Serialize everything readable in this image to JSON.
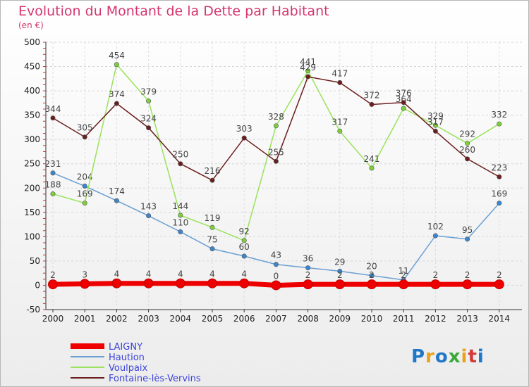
{
  "chart_data": {
    "type": "line",
    "title": "Evolution du Montant de la Dette par Habitant",
    "subtitle": "(en €)",
    "categories": [
      "2000",
      "2001",
      "2002",
      "2003",
      "2004",
      "2005",
      "2006",
      "2007",
      "2008",
      "2009",
      "2010",
      "2011",
      "2012",
      "2013",
      "2014"
    ],
    "ylim": [
      -50,
      500
    ],
    "yticks": [
      -50,
      0,
      50,
      100,
      150,
      200,
      250,
      300,
      350,
      400,
      450,
      500
    ],
    "grid": true,
    "legend_position": "bottom-left",
    "series": [
      {
        "name": "LAIGNY",
        "color": "#ee0000",
        "thick": true,
        "values": [
          2,
          3,
          4,
          4,
          4,
          4,
          4,
          0,
          2,
          2,
          2,
          2,
          2,
          2,
          2
        ],
        "labels": [
          "2",
          "3",
          "4",
          "4",
          "4",
          "4",
          "4",
          "0",
          "2",
          "2",
          "2",
          "2",
          "2",
          "2",
          "2"
        ]
      },
      {
        "name": "Haution",
        "color": "#6a9fd3",
        "marker": "#3a87cf",
        "values": [
          231,
          204,
          174,
          143,
          110,
          75,
          60,
          43,
          36,
          29,
          20,
          11,
          102,
          95,
          169
        ],
        "labels": [
          "231",
          "204",
          "174",
          "143",
          "110",
          "75",
          "60",
          "43",
          "36",
          "29",
          "20",
          "11",
          "102",
          "95",
          "169"
        ]
      },
      {
        "name": "Voulpaix",
        "color": "#99e35a",
        "marker": "#7ed03b",
        "values": [
          188,
          169,
          454,
          379,
          144,
          119,
          92,
          328,
          441,
          317,
          241,
          364,
          329,
          292,
          332
        ],
        "labels": [
          "188",
          "169",
          "454",
          "379",
          "144",
          "119",
          "92",
          "328",
          "441",
          "317",
          "241",
          "364",
          "329",
          "292",
          "332"
        ]
      },
      {
        "name": "Fontaine-lès-Vervins",
        "color": "#6b1e1e",
        "marker": "#6b1e1e",
        "values": [
          344,
          305,
          374,
          324,
          250,
          216,
          303,
          255,
          429,
          417,
          372,
          376,
          317,
          260,
          223
        ],
        "labels": [
          "344",
          "305",
          "374",
          "324",
          "250",
          "216",
          "303",
          "255",
          "429",
          "417",
          "372",
          "376",
          "317",
          "260",
          "223"
        ]
      }
    ]
  },
  "logo": {
    "text": "Proxiti"
  }
}
